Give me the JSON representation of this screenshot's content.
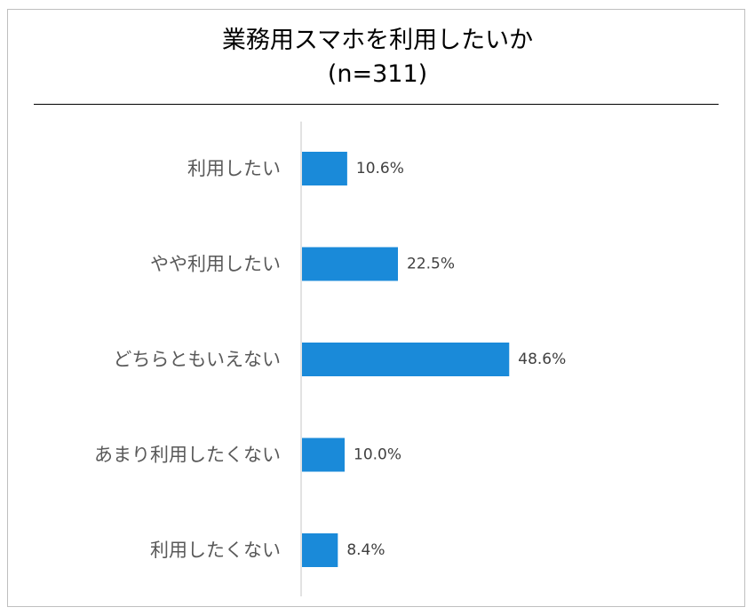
{
  "chart_data": {
    "type": "bar",
    "orientation": "horizontal",
    "title": "業務用スマホを利用したいか",
    "subtitle": "(n=311)",
    "categories": [
      "利用したい",
      "やや利用したい",
      "どちらともいえない",
      "あまり利用したくない",
      "利用したくない"
    ],
    "series": [
      {
        "values": [
          10.6,
          22.5,
          48.6,
          10.0,
          8.4
        ]
      }
    ],
    "value_labels": [
      "10.6%",
      "22.5%",
      "48.6%",
      "10.0%",
      "8.4%"
    ],
    "unit": "%",
    "bar_color": "#1a8ad9",
    "xlim": [
      0,
      100
    ],
    "grid": false,
    "legend": "none"
  }
}
